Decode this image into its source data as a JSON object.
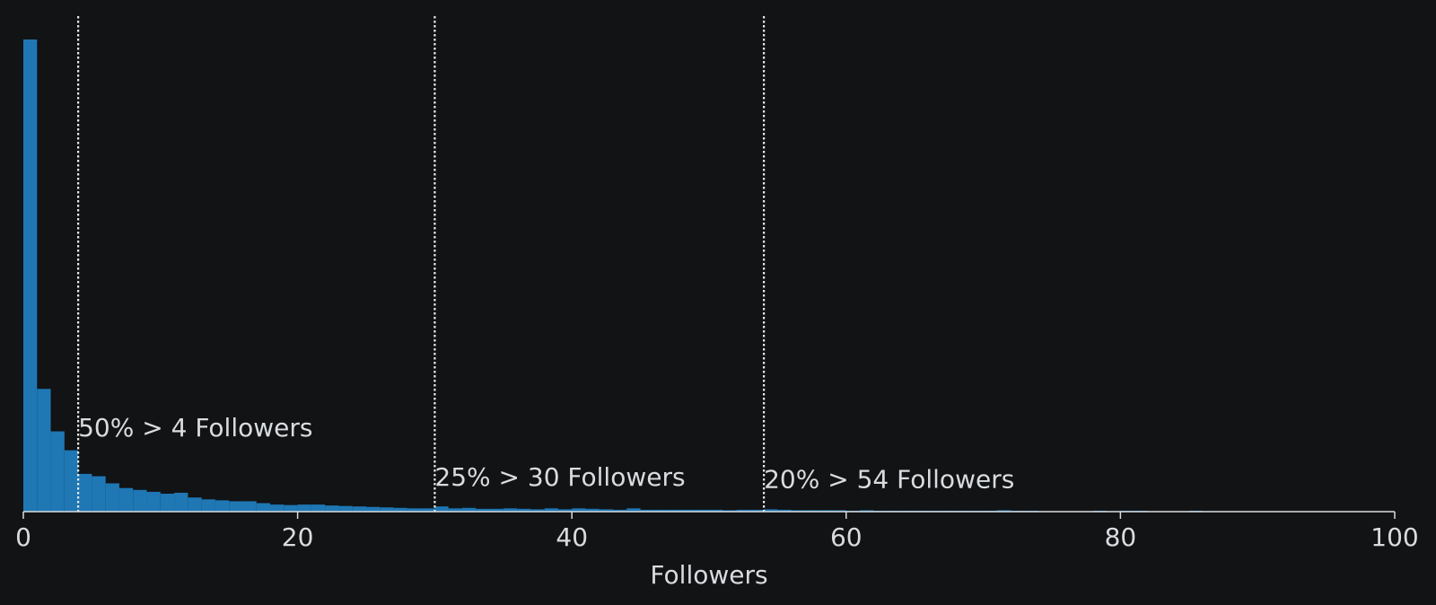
{
  "chart_data": {
    "type": "histogram",
    "xlabel": "Followers",
    "ylabel": "",
    "xlim": [
      0,
      100
    ],
    "xticks": [
      "0",
      "20",
      "40",
      "60",
      "80",
      "100"
    ],
    "bin_width": 1,
    "bar_color": "#1f77b4",
    "values": [
      1.0,
      0.26,
      0.17,
      0.13,
      0.08,
      0.075,
      0.06,
      0.05,
      0.046,
      0.042,
      0.038,
      0.04,
      0.03,
      0.026,
      0.024,
      0.022,
      0.022,
      0.018,
      0.015,
      0.014,
      0.015,
      0.015,
      0.013,
      0.012,
      0.011,
      0.01,
      0.009,
      0.008,
      0.007,
      0.007,
      0.011,
      0.007,
      0.008,
      0.006,
      0.006,
      0.007,
      0.006,
      0.005,
      0.007,
      0.005,
      0.007,
      0.006,
      0.005,
      0.004,
      0.007,
      0.004,
      0.004,
      0.004,
      0.004,
      0.004,
      0.004,
      0.003,
      0.004,
      0.004,
      0.005,
      0.004,
      0.003,
      0.003,
      0.003,
      0.003,
      0.002,
      0.003,
      0.002,
      0.002,
      0.002,
      0.002,
      0.002,
      0.002,
      0.002,
      0.002,
      0.002,
      0.003,
      0.002,
      0.002,
      0.001,
      0.001,
      0.001,
      0.001,
      0.002,
      0.001,
      0.002,
      0.002,
      0.001,
      0.001,
      0.001,
      0.002,
      0.001,
      0.001,
      0.001,
      0.001,
      0.001,
      0.001,
      0.001,
      0.001,
      0.001,
      0.001,
      0.001,
      0.001,
      0.001,
      0.001
    ],
    "annotations": [
      {
        "x": 4,
        "label": "50% > 4 Followers",
        "y": 0.16
      },
      {
        "x": 30,
        "label": "25% > 30 Followers",
        "y": 0.055
      },
      {
        "x": 54,
        "label": "20% > 54 Followers",
        "y": 0.05
      }
    ],
    "grid": false,
    "legend": "none"
  }
}
